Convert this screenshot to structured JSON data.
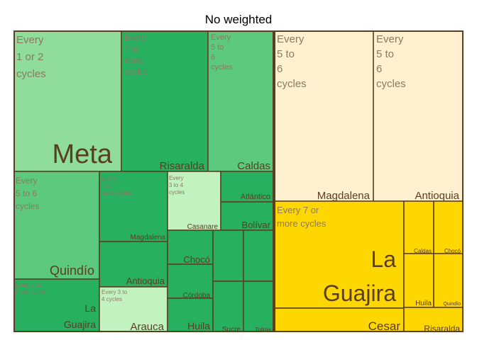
{
  "chart_data": {
    "type": "treemap",
    "title": "No weighted",
    "colors": {
      "border": "#5a3e22",
      "light_green": "#8fdc9b",
      "mid_green": "#5cc97e",
      "dark_green": "#27b060",
      "pale_green": "#c2f2c0",
      "cream": "#fff1cf",
      "gold": "#ffd700"
    },
    "groups": [
      {
        "region": "left",
        "name": "Every 1 or 2 cycles",
        "color": "light_green",
        "cells": [
          {
            "name": "Meta"
          }
        ]
      },
      {
        "region": "left",
        "name": "Every 7 or more cycles",
        "color": "dark_green",
        "cells": [
          {
            "name": "Risaralda"
          }
        ]
      },
      {
        "region": "left",
        "name": "Every 5 to 6 cycles",
        "color": "mid_green",
        "cells": [
          {
            "name": "Caldas"
          }
        ]
      },
      {
        "region": "left",
        "name": "Every 5 to 6 cycles",
        "color": "mid_green",
        "cells": [
          {
            "name": "Quindío"
          }
        ]
      },
      {
        "region": "left",
        "name": "Every 7 or more cycles",
        "color": "dark_green",
        "cells": [
          {
            "name": "Magdalena"
          },
          {
            "name": "Antioquia"
          }
        ]
      },
      {
        "region": "left",
        "name": "Every 3 to 4 cycles",
        "color": "pale_green",
        "cells": [
          {
            "name": "Casanare"
          }
        ]
      },
      {
        "region": "left",
        "name": "",
        "color": "dark_green",
        "cells": [
          {
            "name": "Atlántico"
          },
          {
            "name": "Bolívar"
          }
        ]
      },
      {
        "region": "left",
        "name": "Every 7 or more cycles",
        "color": "dark_green",
        "cells": [
          {
            "name": "La Guajira"
          }
        ]
      },
      {
        "region": "left",
        "name": "Every 3 to 4 cycles",
        "color": "pale_green",
        "cells": [
          {
            "name": "Arauca"
          }
        ]
      },
      {
        "region": "left",
        "name": "",
        "color": "dark_green",
        "cells": [
          {
            "name": "Chocó"
          },
          {
            "name": "Córdoba"
          },
          {
            "name": "Huila"
          },
          {
            "name": "Sucre"
          },
          {
            "name": "Tolima"
          }
        ]
      },
      {
        "region": "right",
        "name": "Every 5 to 6 cycles",
        "color": "cream",
        "cells": [
          {
            "name": "Magdalena"
          }
        ]
      },
      {
        "region": "right",
        "name": "Every 5 to 6 cycles",
        "color": "cream",
        "cells": [
          {
            "name": "Antioquia"
          }
        ]
      },
      {
        "region": "right",
        "name": "Every 7 or more cycles",
        "color": "gold",
        "cells": [
          {
            "name": "La Guajira"
          },
          {
            "name": "Cesar"
          },
          {
            "name": "Caldas"
          },
          {
            "name": "Chocó"
          },
          {
            "name": "Huila"
          },
          {
            "name": "Quindío"
          },
          {
            "name": "Risaralda"
          }
        ]
      }
    ]
  }
}
